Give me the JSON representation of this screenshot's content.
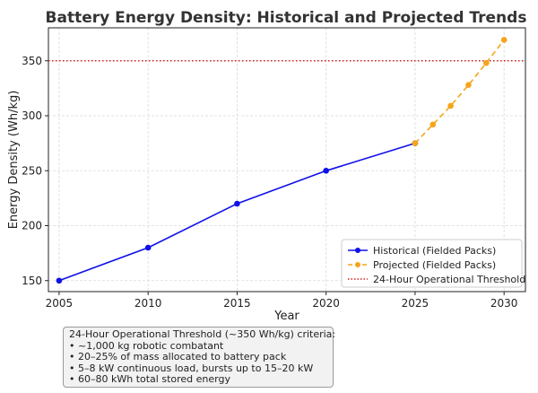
{
  "chart_data": {
    "type": "line",
    "title": "Battery Energy Density: Historical and Projected Trends",
    "xlabel": "Year",
    "ylabel": "Energy Density (Wh/kg)",
    "xlim": [
      2004.4,
      2031.2
    ],
    "ylim": [
      140,
      380
    ],
    "xticks": [
      2005,
      2010,
      2015,
      2020,
      2025,
      2030
    ],
    "yticks": [
      150,
      200,
      250,
      300,
      350
    ],
    "grid": true,
    "legend_position": "bottom-right",
    "series": [
      {
        "name": "Historical (Fielded Packs)",
        "style": "solid",
        "marker": "circle",
        "color": "#1010e8",
        "x": [
          2005,
          2010,
          2015,
          2020,
          2025
        ],
        "y": [
          150,
          180,
          220,
          250,
          275
        ]
      },
      {
        "name": "Projected (Fielded Packs)",
        "style": "dashed",
        "marker": "circle",
        "color": "#f5a51a",
        "x": [
          2025,
          2026,
          2027,
          2028,
          2029,
          2030
        ],
        "y": [
          275,
          292,
          309,
          328,
          348,
          369
        ]
      }
    ],
    "threshold": {
      "name": "24-Hour Operational Threshold",
      "value": 350,
      "color": "#d22222",
      "style": "dotted"
    },
    "annotation": {
      "title": "24-Hour Operational Threshold (~350 Wh/kg) criteria:",
      "items": [
        "• ~1,000 kg robotic combatant",
        "• 20–25% of mass allocated to battery pack",
        "• 5–8 kW continuous load, bursts up to 15–20 kW",
        "• 60–80 kWh total stored energy"
      ]
    }
  }
}
